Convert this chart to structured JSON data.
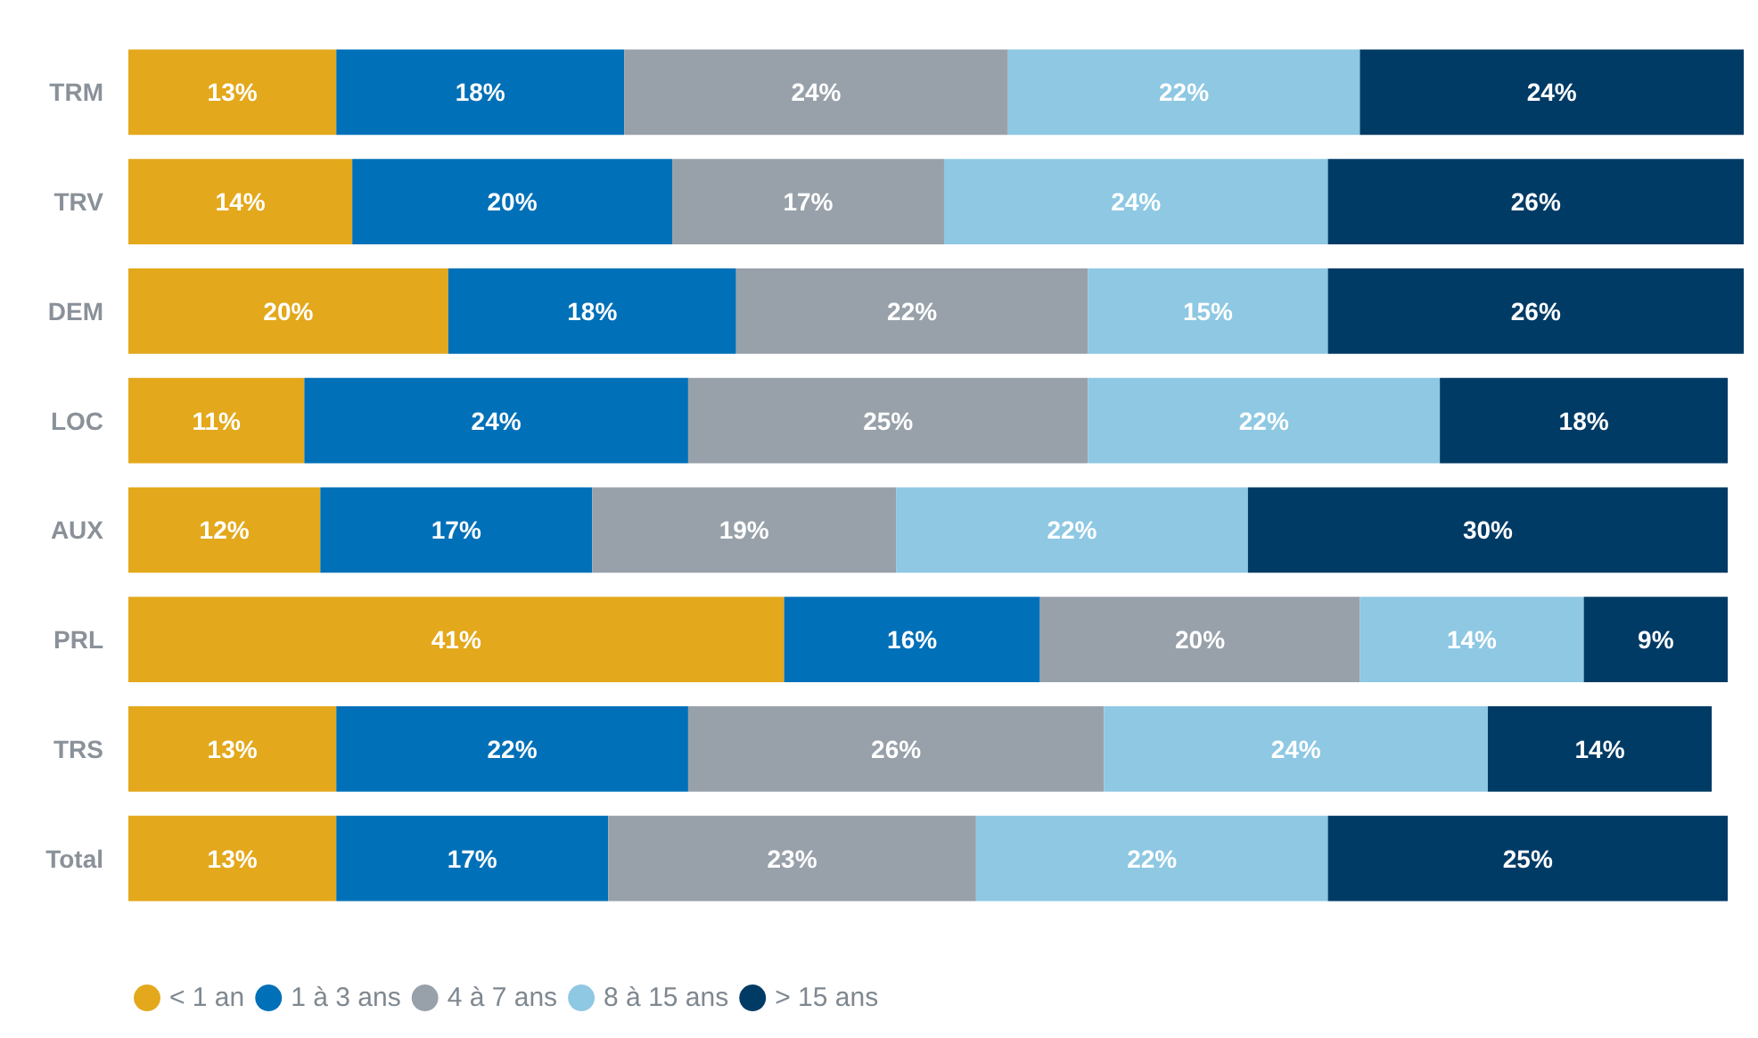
{
  "chart_data": {
    "type": "bar",
    "orientation": "horizontal",
    "stacked": true,
    "categories": [
      "TRM",
      "TRV",
      "DEM",
      "LOC",
      "AUX",
      "PRL",
      "TRS",
      "Total"
    ],
    "xlim": [
      0,
      101
    ],
    "tick_labels": "y",
    "grid": false,
    "legend": "bottom left",
    "series": [
      {
        "name": "< 1 an",
        "color": "#e3a81b",
        "values": [
          13,
          14,
          20,
          11,
          12,
          41,
          13,
          13
        ],
        "value_labels": [
          "13%",
          "14%",
          "20%",
          "11%",
          "12%",
          "41%",
          "13%",
          "13%"
        ]
      },
      {
        "name": "1 à 3 ans",
        "color": "#0070b8",
        "values": [
          18,
          20,
          18,
          24,
          17,
          16,
          22,
          17
        ],
        "value_labels": [
          "18%",
          "20%",
          "18%",
          "24%",
          "17%",
          "16%",
          "22%",
          "17%"
        ]
      },
      {
        "name": "4 à 7 ans",
        "color": "#98a1aa",
        "values": [
          24,
          17,
          22,
          25,
          19,
          20,
          26,
          23
        ],
        "value_labels": [
          "24%",
          "17%",
          "22%",
          "25%",
          "19%",
          "20%",
          "26%",
          "23%"
        ]
      },
      {
        "name": "8 à 15 ans",
        "color": "#8ec8e3",
        "values": [
          22,
          24,
          15,
          22,
          22,
          14,
          24,
          22
        ],
        "value_labels": [
          "22%",
          "24%",
          "15%",
          "22%",
          "22%",
          "14%",
          "24%",
          "22%"
        ]
      },
      {
        "name": "> 15 ans",
        "color": "#003b66",
        "values": [
          24,
          26,
          26,
          18,
          30,
          9,
          14,
          25
        ],
        "value_labels": [
          "24%",
          "26%",
          "26%",
          "18%",
          "30%",
          "9%",
          "14%",
          "25%"
        ]
      }
    ]
  }
}
